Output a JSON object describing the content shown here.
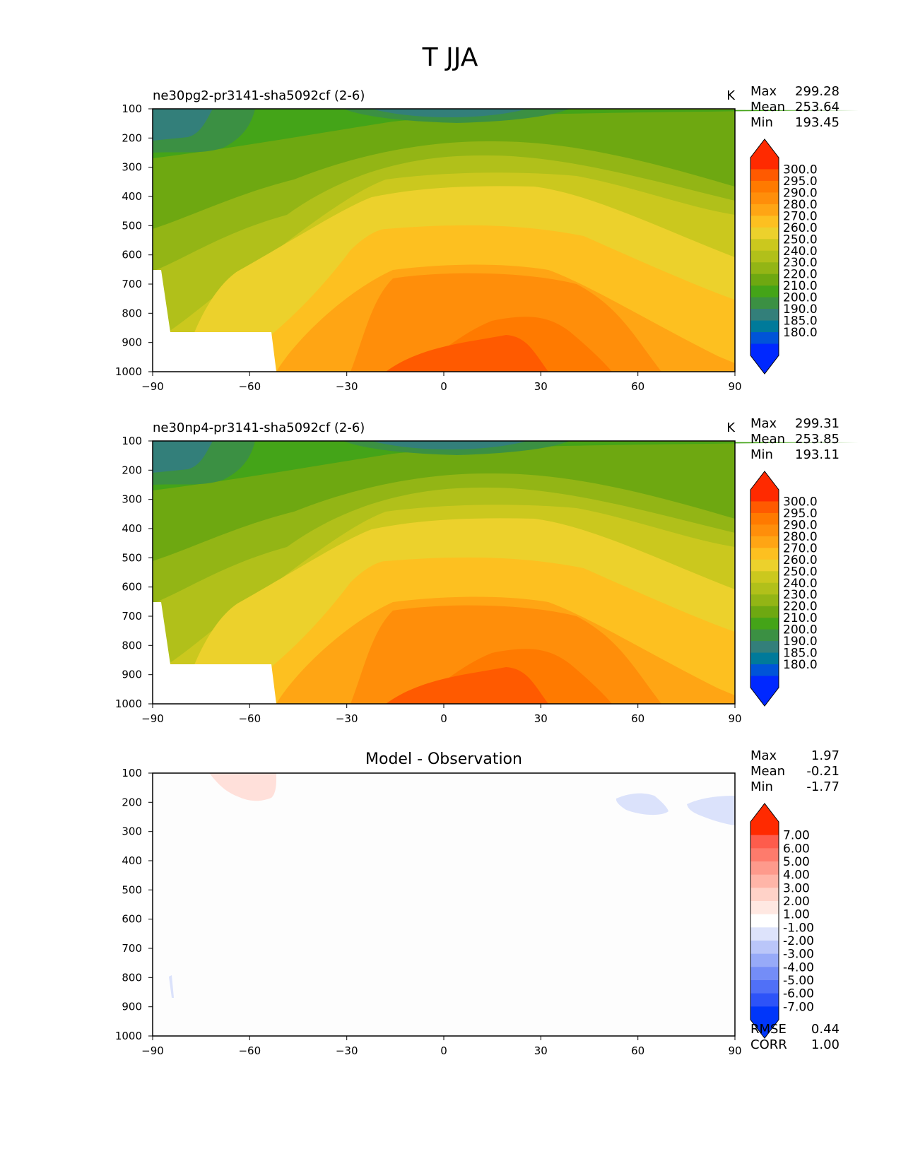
{
  "figure": {
    "title": "T JJA"
  },
  "chart_data": [
    {
      "type": "heatmap",
      "title": "ne30pg2-pr3141-sha5092cf (2-6)",
      "units": "K",
      "stats": [
        {
          "label": "Max",
          "value": "299.28"
        },
        {
          "label": "Mean",
          "value": "253.64"
        },
        {
          "label": "Min",
          "value": "193.45"
        }
      ],
      "x_ticks": [
        "−90",
        "−60",
        "−30",
        "0",
        "30",
        "60",
        "90"
      ],
      "y_ticks": [
        "100",
        "200",
        "300",
        "400",
        "500",
        "600",
        "700",
        "800",
        "900",
        "1000"
      ],
      "xlim": [
        -90,
        90
      ],
      "ylim": [
        1000,
        100
      ],
      "colorbar": {
        "levels": [
          "300.0",
          "295.0",
          "290.0",
          "280.0",
          "270.0",
          "260.0",
          "250.0",
          "240.0",
          "230.0",
          "220.0",
          "210.0",
          "200.0",
          "190.0",
          "185.0",
          "180.0"
        ],
        "colors": [
          "#ff2a00",
          "#ff5a00",
          "#ff7a00",
          "#ff8e0a",
          "#ffa514",
          "#fdc020",
          "#ecd12c",
          "#cbc81e",
          "#b1c01a",
          "#93b515",
          "#6ea811",
          "#44a418",
          "#3b9043",
          "#337f7a",
          "#007a9a",
          "#0054d8",
          "#0028ff"
        ]
      }
    },
    {
      "type": "heatmap",
      "title": "ne30np4-pr3141-sha5092cf (2-6)",
      "units": "K",
      "stats": [
        {
          "label": "Max",
          "value": "299.31"
        },
        {
          "label": "Mean",
          "value": "253.85"
        },
        {
          "label": "Min",
          "value": "193.11"
        }
      ],
      "x_ticks": [
        "−90",
        "−60",
        "−30",
        "0",
        "30",
        "60",
        "90"
      ],
      "y_ticks": [
        "100",
        "200",
        "300",
        "400",
        "500",
        "600",
        "700",
        "800",
        "900",
        "1000"
      ],
      "xlim": [
        -90,
        90
      ],
      "ylim": [
        1000,
        100
      ],
      "colorbar": {
        "levels": [
          "300.0",
          "295.0",
          "290.0",
          "280.0",
          "270.0",
          "260.0",
          "250.0",
          "240.0",
          "230.0",
          "220.0",
          "210.0",
          "200.0",
          "190.0",
          "185.0",
          "180.0"
        ],
        "colors": [
          "#ff2a00",
          "#ff5a00",
          "#ff7a00",
          "#ff8e0a",
          "#ffa514",
          "#fdc020",
          "#ecd12c",
          "#cbc81e",
          "#b1c01a",
          "#93b515",
          "#6ea811",
          "#44a418",
          "#3b9043",
          "#337f7a",
          "#007a9a",
          "#0054d8",
          "#0028ff"
        ]
      }
    },
    {
      "type": "heatmap",
      "title": "Model - Observation",
      "stats": [
        {
          "label": "Max",
          "value": "1.97"
        },
        {
          "label": "Mean",
          "value": "-0.21"
        },
        {
          "label": "Min",
          "value": "-1.77"
        }
      ],
      "extra_stats": [
        {
          "label": "RMSE",
          "value": "0.44"
        },
        {
          "label": "CORR",
          "value": "1.00"
        }
      ],
      "x_ticks": [
        "−90",
        "−60",
        "−30",
        "0",
        "30",
        "60",
        "90"
      ],
      "y_ticks": [
        "100",
        "200",
        "300",
        "400",
        "500",
        "600",
        "700",
        "800",
        "900",
        "1000"
      ],
      "xlim": [
        -90,
        90
      ],
      "ylim": [
        1000,
        100
      ],
      "colorbar": {
        "levels": [
          "7.00",
          "6.00",
          "5.00",
          "4.00",
          "3.00",
          "2.00",
          "1.00",
          "-1.00",
          "-2.00",
          "-3.00",
          "-4.00",
          "-5.00",
          "-6.00",
          "-7.00"
        ],
        "colors": [
          "#ff2a00",
          "#fe5c4c",
          "#fe7b6c",
          "#fe9a8c",
          "#ffb5a8",
          "#ffd2c8",
          "#ffe8e2",
          "#ffffff",
          "#dde3fb",
          "#bac6f9",
          "#97aaf8",
          "#748df7",
          "#5070f7",
          "#2d53f8",
          "#0036fa"
        ]
      }
    }
  ]
}
